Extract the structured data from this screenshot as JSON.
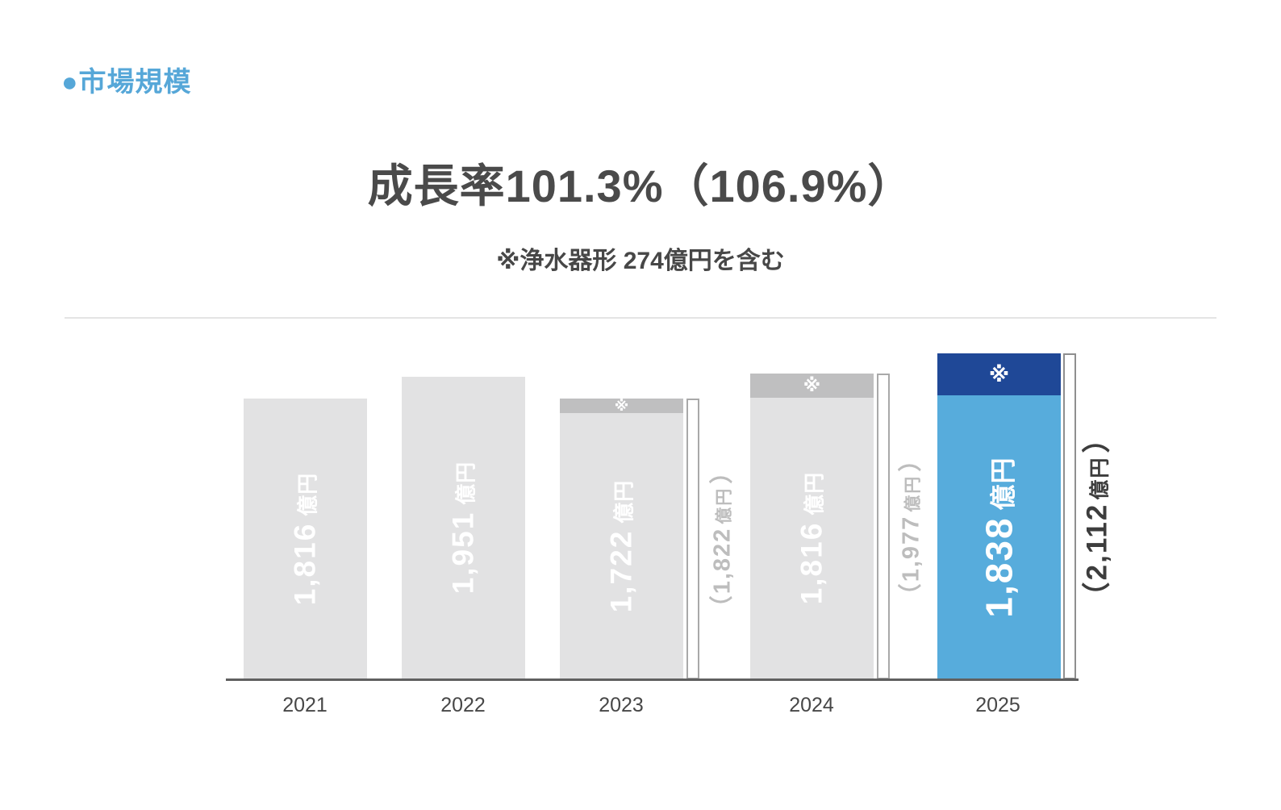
{
  "section_label": "●市場規模",
  "title": "成長率101.3%（106.9%）",
  "subtitle": "※浄水器形 274億円を含む",
  "colors": {
    "accent_blue": "#56a7d8",
    "bar_gray": "#e2e2e3",
    "cap_gray": "#bfbfc0",
    "bar_blue": "#57acdc",
    "cap_navy": "#1f4897",
    "title_text": "#4a4a4a",
    "muted_total_label": "#bdbdbd",
    "dark_total_label": "#3d3d3d",
    "axis": "#606060"
  },
  "chart_data": {
    "type": "bar",
    "title": "成長率101.3%（106.9%）",
    "note": "※浄水器形 274億円を含む (※ = 浄水器形を含む部分)",
    "categories": [
      "2021",
      "2022",
      "2023",
      "2024",
      "2025"
    ],
    "series": [
      {
        "name": "市場規模（億円）",
        "values": [
          1816,
          1951,
          1722,
          1816,
          1838
        ]
      },
      {
        "name": "浄水器形を含む合計（億円）",
        "values": [
          null,
          null,
          1822,
          1977,
          2112
        ]
      }
    ],
    "ylabel": "億円",
    "xlabel": "",
    "legend": "none",
    "grid": false,
    "highlight_category": "2025",
    "growth_rate": "101.3%",
    "growth_rate_incl": "106.9%"
  },
  "bars": [
    {
      "year": "2021",
      "value": "1,816",
      "unit": "億円"
    },
    {
      "year": "2022",
      "value": "1,951",
      "unit": "億円"
    },
    {
      "year": "2023",
      "value": "1,722",
      "unit": "億円",
      "cap_mark": "※",
      "total_open": "（",
      "total_value": "1,822",
      "total_unit": "億円",
      "total_close": "）"
    },
    {
      "year": "2024",
      "value": "1,816",
      "unit": "億円",
      "cap_mark": "※",
      "total_open": "（",
      "total_value": "1,977",
      "total_unit": "億円",
      "total_close": "）"
    },
    {
      "year": "2025",
      "value": "1,838",
      "unit": "億円",
      "cap_mark": "※",
      "total_open": "（",
      "total_value": "2,112",
      "total_unit": "億円",
      "total_close": "）"
    }
  ]
}
